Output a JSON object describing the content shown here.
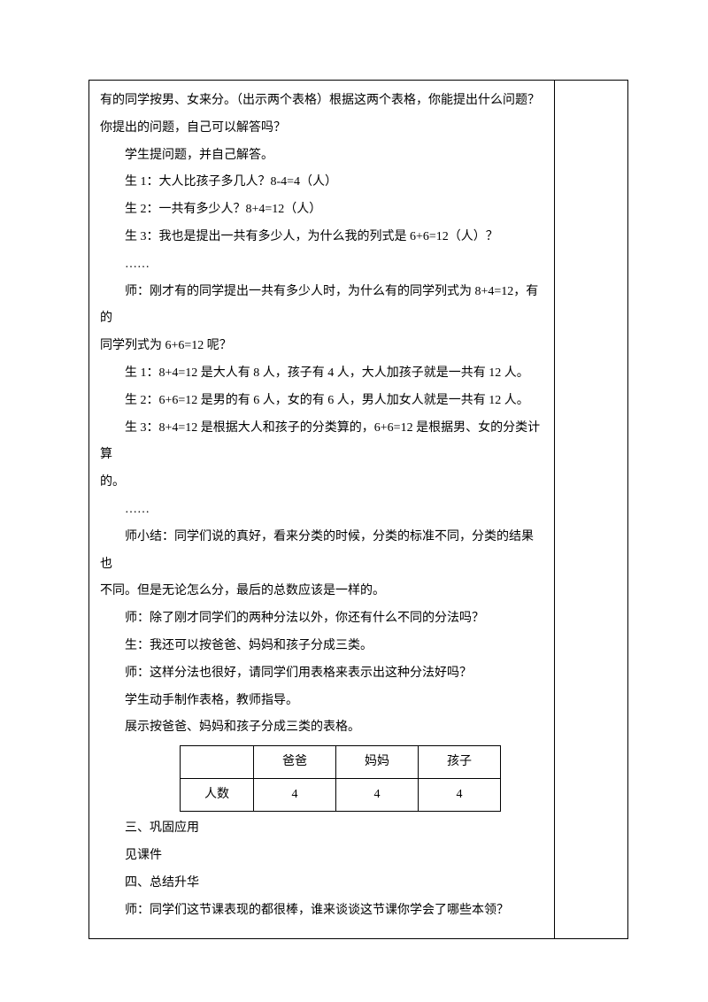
{
  "lines": {
    "l0": "有的同学按男、女来分。（出示两个表格）根据这两个表格，你能提出什么问题？",
    "l1": "你提出的问题，自己可以解答吗？",
    "l2": "学生提问题，并自己解答。",
    "l3": "生 1：大人比孩子多几人？8-4=4（人）",
    "l4": "生 2：一共有多少人？8+4=12（人）",
    "l5": "生 3：我也是提出一共有多少人，为什么我的列式是 6+6=12（人）？",
    "l6": "……",
    "l7": "师：刚才有的同学提出一共有多少人时，为什么有的同学列式为 8+4=12，有的",
    "l8": "同学列式为 6+6=12 呢？",
    "l9": "生 1：8+4=12 是大人有 8 人，孩子有 4 人，大人加孩子就是一共有 12 人。",
    "l10": "生 2：6+6=12 是男的有 6 人，女的有 6 人，男人加女人就是一共有 12 人。",
    "l11": "生 3：8+4=12 是根据大人和孩子的分类算的，6+6=12 是根据男、女的分类计算",
    "l12": "的。",
    "l13": "……",
    "l14": "师小结：同学们说的真好，看来分类的时候，分类的标准不同，分类的结果也",
    "l15": "不同。但是无论怎么分，最后的总数应该是一样的。",
    "l16": "师：除了刚才同学们的两种分法以外，你还有什么不同的分法吗？",
    "l17": "生：我还可以按爸爸、妈妈和孩子分成三类。",
    "l18": "师：这样分法也很好，请同学们用表格来表示出这种分法好吗？",
    "l19": "学生动手制作表格，教师指导。",
    "l20": "展示按爸爸、妈妈和孩子分成三类的表格。",
    "l21": "三、巩固应用",
    "l22": "见课件",
    "l23": "四、总结升华",
    "l24": "师：同学们这节课表现的都很棒，谁来谈谈这节课你学会了哪些本领？"
  },
  "table": {
    "row1": {
      "c0": "",
      "c1": "爸爸",
      "c2": "妈妈",
      "c3": "孩子"
    },
    "row2": {
      "c0": "人数",
      "c1": "4",
      "c2": "4",
      "c3": "4"
    }
  }
}
